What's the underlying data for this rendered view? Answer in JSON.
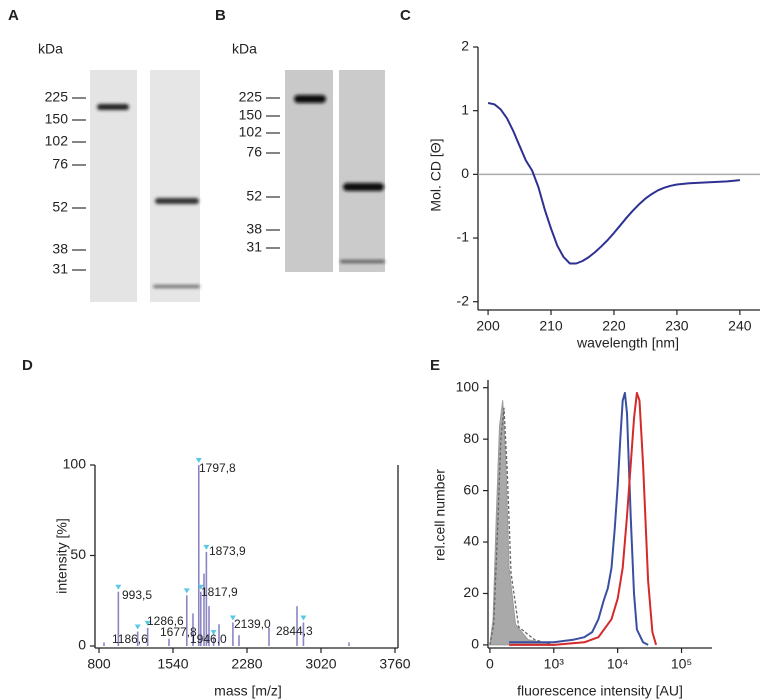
{
  "panel_labels": [
    "A",
    "B",
    "C",
    "D",
    "E"
  ],
  "blots": [
    {
      "unit": "kDa",
      "markers": [
        225,
        150,
        102,
        76,
        52,
        38,
        31
      ]
    },
    {
      "unit": "kDa",
      "markers": [
        225,
        150,
        102,
        76,
        52,
        38,
        31
      ]
    }
  ],
  "chart_data": [
    {
      "type": "line",
      "xlabel": "wavelength [nm]",
      "ylabel": "Mol. CD [Θ]",
      "x": [
        200,
        201,
        202,
        203,
        204,
        205,
        206,
        207,
        208,
        209,
        210,
        211,
        212,
        213,
        214,
        215,
        216,
        217,
        218,
        219,
        220,
        221,
        222,
        223,
        224,
        225,
        226,
        227,
        228,
        229,
        230,
        232,
        234,
        236,
        238,
        240
      ],
      "series": [
        {
          "color": "#2e3192",
          "values": [
            1.12,
            1.1,
            1.02,
            0.88,
            0.68,
            0.45,
            0.22,
            0.06,
            -0.2,
            -0.55,
            -0.85,
            -1.12,
            -1.3,
            -1.4,
            -1.4,
            -1.36,
            -1.3,
            -1.22,
            -1.13,
            -1.03,
            -0.92,
            -0.8,
            -0.68,
            -0.57,
            -0.47,
            -0.38,
            -0.31,
            -0.25,
            -0.21,
            -0.18,
            -0.16,
            -0.14,
            -0.13,
            -0.12,
            -0.11,
            -0.09
          ]
        }
      ],
      "hline": 0,
      "xlim": [
        198.4,
        243.2
      ],
      "xticks": [
        200,
        210,
        220,
        230,
        240
      ],
      "ylim": [
        -2.13,
        2
      ],
      "yticks": [
        -2,
        -1,
        0,
        1,
        2
      ]
    },
    {
      "type": "bar",
      "xlabel": "mass [m/z]",
      "ylabel": "intensity [%]",
      "color": "#8a86c4",
      "x": [
        850,
        993.5,
        1186.6,
        1286.6,
        1500,
        1677.8,
        1740,
        1797.8,
        1817.9,
        1850,
        1873.9,
        1900,
        1946.0,
        2000,
        2139.0,
        2200,
        2500,
        2780,
        2844.3,
        3300
      ],
      "values": [
        2,
        30,
        8,
        10,
        4,
        28,
        18,
        100,
        30,
        40,
        52,
        22,
        5,
        12,
        13,
        6,
        10,
        22,
        13,
        2
      ],
      "annotations": [
        {
          "x": 993.5,
          "label": "993,5"
        },
        {
          "x": 1186.6,
          "label": "1186,6"
        },
        {
          "x": 1286.6,
          "label": "1286,6"
        },
        {
          "x": 1677.8,
          "label": "1677,8"
        },
        {
          "x": 1797.8,
          "label": "1797,8"
        },
        {
          "x": 1817.9,
          "label": "1817,9"
        },
        {
          "x": 1873.9,
          "label": "1873,9"
        },
        {
          "x": 1946.0,
          "label": "1946,0"
        },
        {
          "x": 2139.0,
          "label": "2139,0"
        },
        {
          "x": 2844.3,
          "label": "2844,3"
        }
      ],
      "xlim": [
        760,
        3790
      ],
      "xticks": [
        800,
        1540,
        2280,
        3020,
        3760
      ],
      "ylim": [
        -1.1,
        100
      ],
      "yticks": [
        0,
        50,
        100
      ]
    },
    {
      "type": "line",
      "xlabel": "fluorescence intensity [AU]",
      "ylabel": "rel.cell number",
      "xscale": "symlog",
      "linthresh": 1000,
      "series": [
        {
          "color": "#9a9a9a",
          "fill": true,
          "x": [
            0,
            50,
            100,
            150,
            200,
            250,
            300,
            400,
            600,
            1000
          ],
          "values": [
            0,
            10,
            50,
            85,
            95,
            70,
            30,
            8,
            2,
            0
          ]
        },
        {
          "color": "#666666",
          "dash": true,
          "x": [
            0,
            60,
            120,
            170,
            220,
            270,
            330,
            450,
            700,
            1000
          ],
          "values": [
            0,
            8,
            45,
            80,
            92,
            68,
            28,
            7,
            2,
            0
          ]
        },
        {
          "color": "#3a4fa0",
          "x": [
            300,
            1000,
            2000,
            3000,
            4000,
            5000,
            6000,
            7000,
            8000,
            9000,
            10000,
            11000,
            12000,
            13000,
            14000,
            16000,
            18000,
            20000,
            25000,
            30000
          ],
          "values": [
            1,
            1,
            2,
            3,
            5,
            10,
            17,
            22,
            30,
            45,
            62,
            80,
            95,
            98,
            90,
            50,
            20,
            6,
            1,
            0
          ]
        },
        {
          "color": "#d42a2a",
          "x": [
            300,
            1000,
            3000,
            5000,
            8000,
            10000,
            12000,
            14000,
            16000,
            18000,
            20000,
            22000,
            25000,
            30000,
            35000,
            40000
          ],
          "values": [
            0,
            0,
            1,
            3,
            10,
            18,
            30,
            50,
            70,
            88,
            98,
            95,
            70,
            25,
            5,
            0
          ]
        }
      ],
      "xlim": [
        -30,
        300000
      ],
      "xticks": [
        0,
        {
          "value": 1000,
          "label": "10³"
        },
        {
          "value": 10000,
          "label": "10⁴"
        },
        {
          "value": 100000,
          "label": "10⁵"
        }
      ],
      "ylim": [
        -1.2,
        103
      ],
      "yticks": [
        0,
        20,
        40,
        60,
        80,
        100
      ]
    }
  ]
}
